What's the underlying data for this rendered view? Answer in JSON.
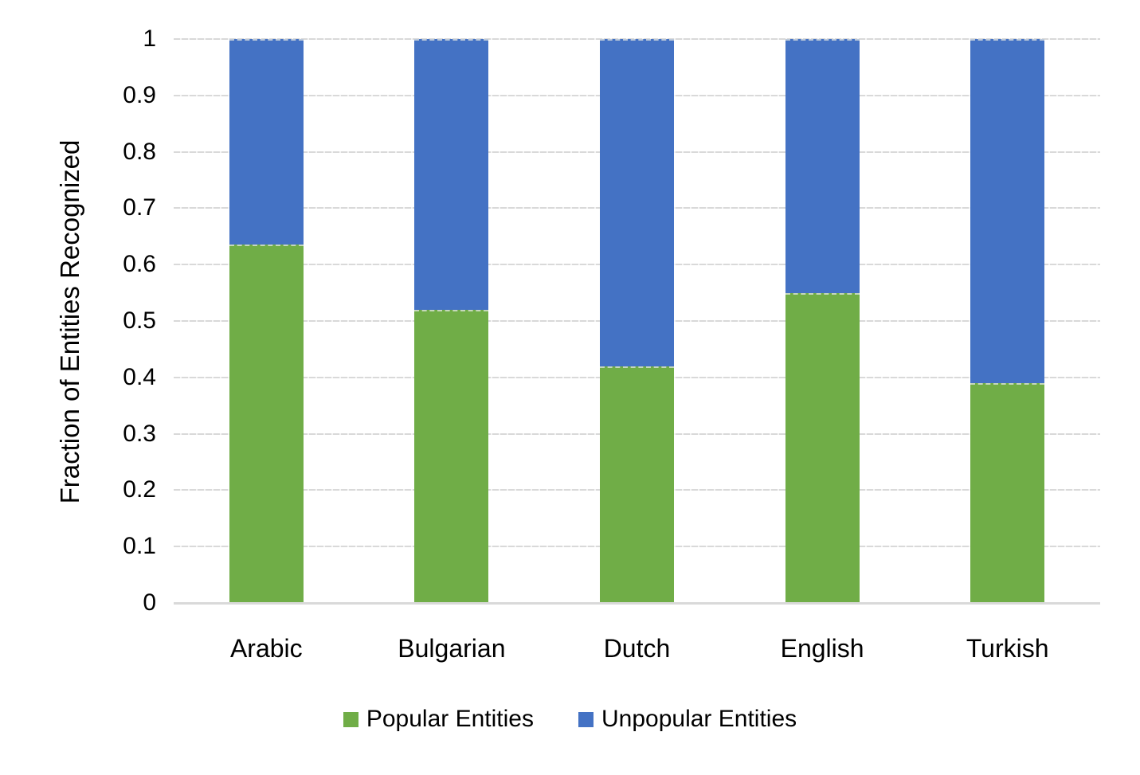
{
  "chart_data": {
    "type": "bar",
    "stacked": true,
    "title": "",
    "xlabel": "",
    "ylabel": "Fraction of Entities Recognized",
    "categories": [
      "Arabic",
      "Bulgarian",
      "Dutch",
      "English",
      "Turkish"
    ],
    "series": [
      {
        "name": "Popular Entities",
        "color": "#70AD47",
        "values": [
          0.635,
          0.52,
          0.42,
          0.55,
          0.39
        ]
      },
      {
        "name": "Unpopular Entities",
        "color": "#4472C4",
        "values": [
          0.365,
          0.48,
          0.58,
          0.45,
          0.61
        ]
      }
    ],
    "ylim": [
      0,
      1
    ],
    "yticks": [
      "0",
      "0.1",
      "0.2",
      "0.3",
      "0.4",
      "0.5",
      "0.6",
      "0.7",
      "0.8",
      "0.9",
      "1"
    ],
    "grid": true,
    "gridline_color": "#D9D9D9",
    "axis_line_color": "#D9D9D9",
    "text_color": "#000000",
    "background_color": "#FFFFFF",
    "legend_position": "bottom"
  }
}
